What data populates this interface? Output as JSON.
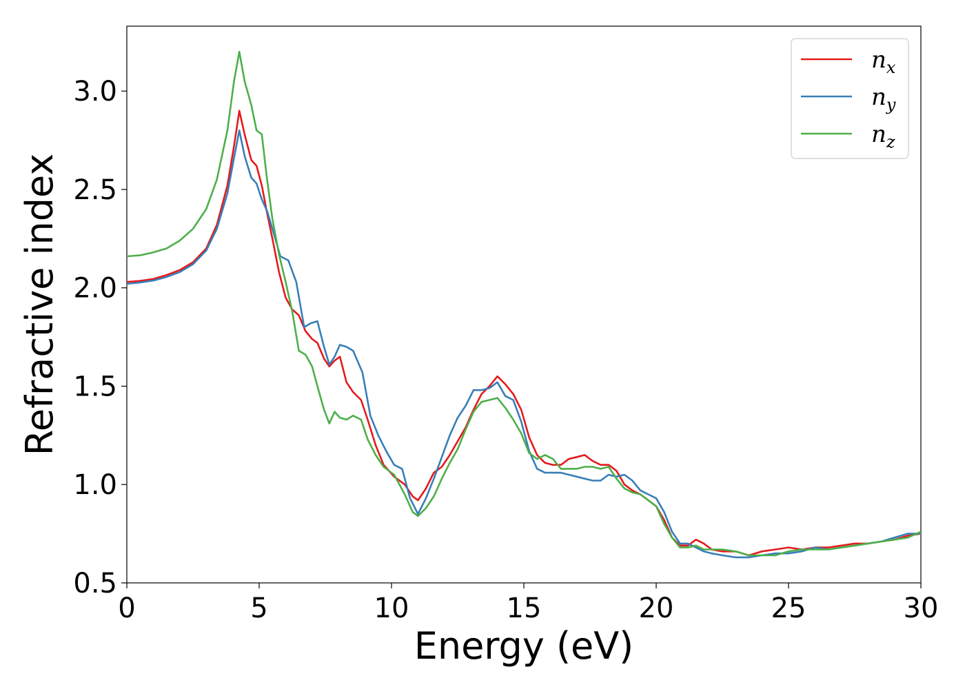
{
  "chart_data": {
    "type": "line",
    "xlabel": "Energy (eV)",
    "ylabel": "Refractive index",
    "xlim": [
      0,
      30
    ],
    "ylim": [
      0.5,
      3.33
    ],
    "x_ticks": [
      "0",
      "5",
      "10",
      "15",
      "20",
      "25",
      "30"
    ],
    "y_ticks": [
      "0.5",
      "1.0",
      "1.5",
      "2.0",
      "2.5",
      "3.0"
    ],
    "grid": false,
    "legend_position": "top-right",
    "series": [
      {
        "name": "n_x",
        "label_main": "n",
        "label_sub": "x",
        "color": "#e41a1c",
        "points": [
          [
            0,
            2.03
          ],
          [
            0.5,
            2.035
          ],
          [
            1,
            2.045
          ],
          [
            1.5,
            2.065
          ],
          [
            2,
            2.09
          ],
          [
            2.5,
            2.13
          ],
          [
            3,
            2.2
          ],
          [
            3.4,
            2.32
          ],
          [
            3.8,
            2.52
          ],
          [
            4.05,
            2.72
          ],
          [
            4.25,
            2.9
          ],
          [
            4.45,
            2.78
          ],
          [
            4.7,
            2.65
          ],
          [
            4.9,
            2.62
          ],
          [
            5.1,
            2.52
          ],
          [
            5.3,
            2.38
          ],
          [
            5.5,
            2.25
          ],
          [
            5.75,
            2.08
          ],
          [
            6,
            1.95
          ],
          [
            6.25,
            1.89
          ],
          [
            6.5,
            1.86
          ],
          [
            6.75,
            1.78
          ],
          [
            7.0,
            1.74
          ],
          [
            7.2,
            1.72
          ],
          [
            7.45,
            1.64
          ],
          [
            7.65,
            1.6
          ],
          [
            7.85,
            1.63
          ],
          [
            8.05,
            1.65
          ],
          [
            8.3,
            1.52
          ],
          [
            8.55,
            1.47
          ],
          [
            8.85,
            1.43
          ],
          [
            9.1,
            1.33
          ],
          [
            9.4,
            1.2
          ],
          [
            9.7,
            1.1
          ],
          [
            10.1,
            1.04
          ],
          [
            10.5,
            1.0
          ],
          [
            10.8,
            0.94
          ],
          [
            11.0,
            0.92
          ],
          [
            11.3,
            0.98
          ],
          [
            11.6,
            1.06
          ],
          [
            11.9,
            1.09
          ],
          [
            12.2,
            1.15
          ],
          [
            12.5,
            1.22
          ],
          [
            12.8,
            1.29
          ],
          [
            13.1,
            1.38
          ],
          [
            13.4,
            1.46
          ],
          [
            13.7,
            1.5
          ],
          [
            14.0,
            1.55
          ],
          [
            14.3,
            1.51
          ],
          [
            14.6,
            1.46
          ],
          [
            14.9,
            1.38
          ],
          [
            15.2,
            1.24
          ],
          [
            15.5,
            1.15
          ],
          [
            15.8,
            1.11
          ],
          [
            16.1,
            1.1
          ],
          [
            16.4,
            1.1
          ],
          [
            16.7,
            1.13
          ],
          [
            17.0,
            1.14
          ],
          [
            17.3,
            1.15
          ],
          [
            17.6,
            1.12
          ],
          [
            17.9,
            1.1
          ],
          [
            18.2,
            1.1
          ],
          [
            18.5,
            1.07
          ],
          [
            18.8,
            1.0
          ],
          [
            19.1,
            0.97
          ],
          [
            19.4,
            0.95
          ],
          [
            19.7,
            0.92
          ],
          [
            20.0,
            0.89
          ],
          [
            20.3,
            0.82
          ],
          [
            20.6,
            0.73
          ],
          [
            20.9,
            0.69
          ],
          [
            21.2,
            0.69
          ],
          [
            21.5,
            0.72
          ],
          [
            21.8,
            0.7
          ],
          [
            22.1,
            0.67
          ],
          [
            22.5,
            0.66
          ],
          [
            23.0,
            0.66
          ],
          [
            23.5,
            0.64
          ],
          [
            24.0,
            0.66
          ],
          [
            24.5,
            0.67
          ],
          [
            25.0,
            0.68
          ],
          [
            25.5,
            0.67
          ],
          [
            26.0,
            0.68
          ],
          [
            26.5,
            0.68
          ],
          [
            27.0,
            0.69
          ],
          [
            27.5,
            0.7
          ],
          [
            28.0,
            0.7
          ],
          [
            28.5,
            0.71
          ],
          [
            29.0,
            0.72
          ],
          [
            29.5,
            0.74
          ],
          [
            30.0,
            0.75
          ]
        ]
      },
      {
        "name": "n_y",
        "label_main": "n",
        "label_sub": "y",
        "color": "#377eb8",
        "points": [
          [
            0,
            2.02
          ],
          [
            0.5,
            2.027
          ],
          [
            1,
            2.037
          ],
          [
            1.5,
            2.055
          ],
          [
            2,
            2.08
          ],
          [
            2.5,
            2.12
          ],
          [
            3,
            2.19
          ],
          [
            3.4,
            2.3
          ],
          [
            3.8,
            2.48
          ],
          [
            4.05,
            2.66
          ],
          [
            4.25,
            2.8
          ],
          [
            4.45,
            2.67
          ],
          [
            4.7,
            2.56
          ],
          [
            4.9,
            2.53
          ],
          [
            5.1,
            2.45
          ],
          [
            5.3,
            2.39
          ],
          [
            5.5,
            2.3
          ],
          [
            5.8,
            2.16
          ],
          [
            6.1,
            2.14
          ],
          [
            6.4,
            2.03
          ],
          [
            6.7,
            1.8
          ],
          [
            6.95,
            1.82
          ],
          [
            7.2,
            1.83
          ],
          [
            7.45,
            1.7
          ],
          [
            7.65,
            1.61
          ],
          [
            7.85,
            1.65
          ],
          [
            8.05,
            1.71
          ],
          [
            8.3,
            1.7
          ],
          [
            8.55,
            1.68
          ],
          [
            8.9,
            1.57
          ],
          [
            9.2,
            1.35
          ],
          [
            9.5,
            1.25
          ],
          [
            9.8,
            1.17
          ],
          [
            10.1,
            1.1
          ],
          [
            10.4,
            1.08
          ],
          [
            10.7,
            0.93
          ],
          [
            11.0,
            0.85
          ],
          [
            11.3,
            0.93
          ],
          [
            11.6,
            1.03
          ],
          [
            11.9,
            1.14
          ],
          [
            12.2,
            1.25
          ],
          [
            12.5,
            1.34
          ],
          [
            12.8,
            1.4
          ],
          [
            13.1,
            1.48
          ],
          [
            13.4,
            1.48
          ],
          [
            13.7,
            1.49
          ],
          [
            14.0,
            1.52
          ],
          [
            14.3,
            1.45
          ],
          [
            14.6,
            1.43
          ],
          [
            14.9,
            1.32
          ],
          [
            15.2,
            1.17
          ],
          [
            15.5,
            1.08
          ],
          [
            15.8,
            1.06
          ],
          [
            16.1,
            1.06
          ],
          [
            16.4,
            1.06
          ],
          [
            16.7,
            1.05
          ],
          [
            17.0,
            1.04
          ],
          [
            17.3,
            1.03
          ],
          [
            17.6,
            1.02
          ],
          [
            17.9,
            1.02
          ],
          [
            18.2,
            1.05
          ],
          [
            18.5,
            1.04
          ],
          [
            18.8,
            1.05
          ],
          [
            19.1,
            1.02
          ],
          [
            19.4,
            0.97
          ],
          [
            19.7,
            0.95
          ],
          [
            20.0,
            0.93
          ],
          [
            20.3,
            0.86
          ],
          [
            20.6,
            0.76
          ],
          [
            20.9,
            0.7
          ],
          [
            21.2,
            0.7
          ],
          [
            21.5,
            0.68
          ],
          [
            21.8,
            0.66
          ],
          [
            22.1,
            0.65
          ],
          [
            22.5,
            0.64
          ],
          [
            23.0,
            0.63
          ],
          [
            23.5,
            0.63
          ],
          [
            24.0,
            0.64
          ],
          [
            24.5,
            0.65
          ],
          [
            25.0,
            0.65
          ],
          [
            25.5,
            0.66
          ],
          [
            26.0,
            0.68
          ],
          [
            26.5,
            0.67
          ],
          [
            27.0,
            0.68
          ],
          [
            27.5,
            0.69
          ],
          [
            28.0,
            0.7
          ],
          [
            28.5,
            0.71
          ],
          [
            29.0,
            0.73
          ],
          [
            29.5,
            0.75
          ],
          [
            30.0,
            0.75
          ]
        ]
      },
      {
        "name": "n_z",
        "label_main": "n",
        "label_sub": "z",
        "color": "#4daf4a",
        "points": [
          [
            0,
            2.16
          ],
          [
            0.5,
            2.165
          ],
          [
            1,
            2.18
          ],
          [
            1.5,
            2.2
          ],
          [
            2,
            2.24
          ],
          [
            2.5,
            2.3
          ],
          [
            3,
            2.4
          ],
          [
            3.4,
            2.55
          ],
          [
            3.8,
            2.8
          ],
          [
            4.05,
            3.05
          ],
          [
            4.25,
            3.2
          ],
          [
            4.45,
            3.05
          ],
          [
            4.7,
            2.93
          ],
          [
            4.9,
            2.8
          ],
          [
            5.1,
            2.78
          ],
          [
            5.3,
            2.55
          ],
          [
            5.5,
            2.35
          ],
          [
            5.75,
            2.17
          ],
          [
            6,
            2.03
          ],
          [
            6.25,
            1.88
          ],
          [
            6.5,
            1.68
          ],
          [
            6.75,
            1.66
          ],
          [
            7.0,
            1.6
          ],
          [
            7.2,
            1.5
          ],
          [
            7.45,
            1.38
          ],
          [
            7.65,
            1.31
          ],
          [
            7.85,
            1.37
          ],
          [
            8.05,
            1.34
          ],
          [
            8.3,
            1.33
          ],
          [
            8.55,
            1.35
          ],
          [
            8.85,
            1.33
          ],
          [
            9.1,
            1.23
          ],
          [
            9.4,
            1.15
          ],
          [
            9.7,
            1.09
          ],
          [
            10.1,
            1.05
          ],
          [
            10.5,
            0.95
          ],
          [
            10.8,
            0.86
          ],
          [
            11.0,
            0.84
          ],
          [
            11.3,
            0.88
          ],
          [
            11.6,
            0.94
          ],
          [
            11.9,
            1.03
          ],
          [
            12.2,
            1.11
          ],
          [
            12.5,
            1.18
          ],
          [
            12.8,
            1.28
          ],
          [
            13.1,
            1.37
          ],
          [
            13.4,
            1.42
          ],
          [
            13.7,
            1.43
          ],
          [
            14.0,
            1.44
          ],
          [
            14.3,
            1.39
          ],
          [
            14.6,
            1.33
          ],
          [
            14.9,
            1.26
          ],
          [
            15.2,
            1.16
          ],
          [
            15.5,
            1.13
          ],
          [
            15.8,
            1.15
          ],
          [
            16.1,
            1.13
          ],
          [
            16.4,
            1.08
          ],
          [
            16.7,
            1.08
          ],
          [
            17.0,
            1.08
          ],
          [
            17.3,
            1.09
          ],
          [
            17.6,
            1.09
          ],
          [
            17.9,
            1.08
          ],
          [
            18.2,
            1.09
          ],
          [
            18.5,
            1.03
          ],
          [
            18.8,
            0.98
          ],
          [
            19.1,
            0.96
          ],
          [
            19.4,
            0.95
          ],
          [
            19.7,
            0.92
          ],
          [
            20.0,
            0.89
          ],
          [
            20.3,
            0.8
          ],
          [
            20.6,
            0.73
          ],
          [
            20.9,
            0.68
          ],
          [
            21.2,
            0.68
          ],
          [
            21.5,
            0.69
          ],
          [
            21.8,
            0.67
          ],
          [
            22.1,
            0.67
          ],
          [
            22.5,
            0.67
          ],
          [
            23.0,
            0.66
          ],
          [
            23.5,
            0.64
          ],
          [
            24.0,
            0.64
          ],
          [
            24.5,
            0.64
          ],
          [
            25.0,
            0.66
          ],
          [
            25.5,
            0.67
          ],
          [
            26.0,
            0.67
          ],
          [
            26.5,
            0.67
          ],
          [
            27.0,
            0.68
          ],
          [
            27.5,
            0.69
          ],
          [
            28.0,
            0.7
          ],
          [
            28.5,
            0.71
          ],
          [
            29.0,
            0.72
          ],
          [
            29.5,
            0.73
          ],
          [
            30.0,
            0.76
          ]
        ]
      }
    ]
  }
}
